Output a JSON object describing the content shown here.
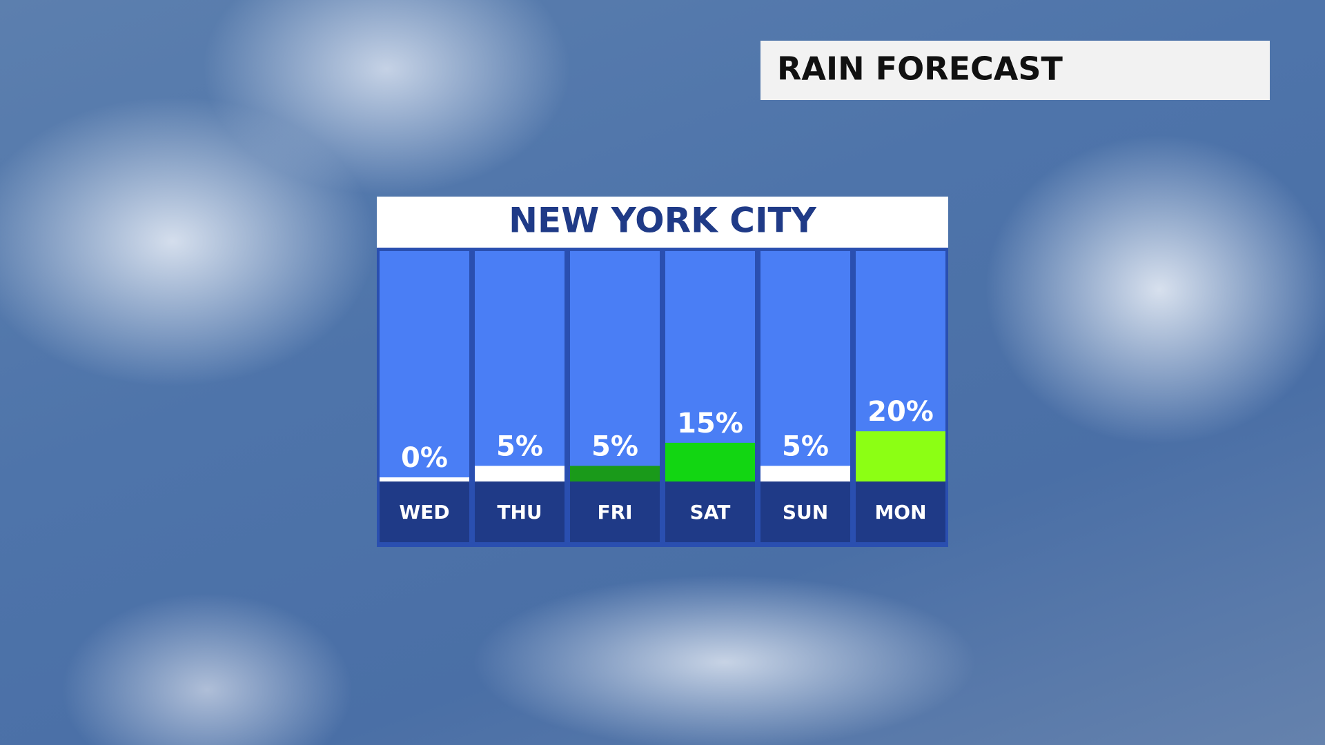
{
  "header": {
    "title": "RAIN FORECAST"
  },
  "chart_data": {
    "type": "bar",
    "title": "NEW YORK CITY",
    "categories": [
      "WED",
      "THU",
      "FRI",
      "SAT",
      "SUN",
      "MON"
    ],
    "values": [
      0,
      5,
      5,
      15,
      5,
      20
    ],
    "value_labels": [
      "0%",
      "5%",
      "5%",
      "15%",
      "5%",
      "20%"
    ],
    "colors": [
      "#ffffff",
      "#ffffff",
      "#1a9a1a",
      "#12d612",
      "#ffffff",
      "#8cff14"
    ],
    "ylim": [
      0,
      100
    ]
  }
}
